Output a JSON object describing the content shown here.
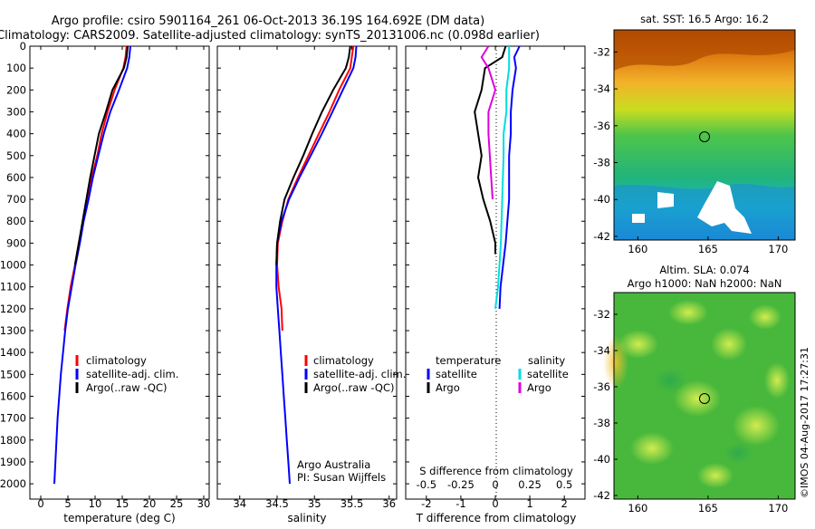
{
  "title_line1": "Argo profile: csiro 5901164_261 06-Oct-2013 36.19S 164.692E (DM data)",
  "title_line2": "Climatology: CARS2009. Satellite-adjusted climatology: synTS_20131006.nc (0.098d earlier)",
  "credit": {
    "line1": "Argo Australia",
    "line2": "PI: Susan Wijffels",
    "stamp": "©IMOS 04-Aug-2017 17:27:31"
  },
  "colors": {
    "climatology": "#ff0000",
    "satellite": "#0000ff",
    "argo": "#000000",
    "salinity_satellite": "#00dddd",
    "salinity_argo": "#dd00dd"
  },
  "chart_data": [
    {
      "type": "line",
      "name": "temperature",
      "xlabel": "temperature (deg C)",
      "xlim": [
        -2,
        31
      ],
      "ylim": [
        2070,
        0
      ],
      "x_ticks": [
        0,
        5,
        10,
        15,
        20,
        25,
        30
      ],
      "y_ticks": [
        0,
        100,
        200,
        300,
        400,
        500,
        600,
        700,
        800,
        900,
        1000,
        1100,
        1200,
        1300,
        1400,
        1500,
        1600,
        1700,
        1800,
        1900,
        2000
      ],
      "legend": [
        "climatology",
        "satellite-adj. clim.",
        "Argo(..raw -QC)"
      ],
      "series": [
        {
          "name": "climatology",
          "depth": [
            0,
            50,
            100,
            200,
            300,
            400,
            500,
            600,
            700,
            800,
            900,
            1000,
            1100,
            1200,
            1300
          ],
          "values": [
            15.8,
            15.6,
            15.2,
            13.6,
            12.3,
            11.2,
            10.4,
            9.4,
            8.6,
            7.8,
            7.0,
            6.3,
            5.5,
            4.9,
            4.4
          ]
        },
        {
          "name": "satellite-adj. clim.",
          "depth": [
            0,
            50,
            100,
            200,
            300,
            400,
            500,
            600,
            700,
            800,
            900,
            1000,
            1100,
            1200,
            1300,
            1400,
            1500,
            1600,
            1700,
            1800,
            1900,
            2000
          ],
          "values": [
            16.5,
            16.3,
            15.9,
            14.4,
            12.8,
            11.6,
            10.6,
            9.6,
            8.8,
            7.9,
            7.2,
            6.4,
            5.7,
            5.0,
            4.5,
            4.1,
            3.7,
            3.4,
            3.1,
            2.9,
            2.7,
            2.5
          ]
        },
        {
          "name": "Argo(..raw -QC)",
          "depth": [
            0,
            50,
            100,
            200,
            300,
            400,
            500,
            600,
            700,
            800,
            900,
            1000
          ],
          "values": [
            16.0,
            15.8,
            15.3,
            13.2,
            12.0,
            10.7,
            9.9,
            9.1,
            8.4,
            7.7,
            7.0,
            6.3
          ]
        }
      ]
    },
    {
      "type": "line",
      "name": "salinity",
      "xlabel": "salinity",
      "xlim": [
        33.7,
        36.1
      ],
      "ylim": [
        2070,
        0
      ],
      "x_ticks": [
        34,
        34.5,
        35,
        35.5,
        36
      ],
      "legend": [
        "climatology",
        "satellite-adj. clim.",
        "Argo(..raw -QC)"
      ],
      "series": [
        {
          "name": "climatology",
          "depth": [
            0,
            50,
            100,
            200,
            300,
            400,
            500,
            600,
            700,
            800,
            900,
            1000,
            1100,
            1200,
            1300
          ],
          "values": [
            35.52,
            35.5,
            35.48,
            35.33,
            35.2,
            35.06,
            34.92,
            34.78,
            34.65,
            34.57,
            34.51,
            34.5,
            34.52,
            34.56,
            34.57
          ]
        },
        {
          "name": "satellite-adj. clim.",
          "depth": [
            0,
            50,
            100,
            200,
            300,
            400,
            500,
            600,
            700,
            800,
            900,
            1000,
            1100,
            1200,
            1300,
            1400,
            1500,
            1600,
            1700,
            1800,
            1900,
            2000
          ],
          "values": [
            35.56,
            35.55,
            35.52,
            35.38,
            35.24,
            35.1,
            34.95,
            34.8,
            34.66,
            34.56,
            34.5,
            34.49,
            34.49,
            34.51,
            34.53,
            34.55,
            34.57,
            34.59,
            34.61,
            34.63,
            34.65,
            34.67
          ]
        },
        {
          "name": "Argo(..raw -QC)",
          "depth": [
            0,
            50,
            100,
            200,
            300,
            400,
            500,
            600,
            700,
            800,
            900,
            1000
          ],
          "values": [
            35.48,
            35.46,
            35.42,
            35.25,
            35.1,
            34.97,
            34.85,
            34.72,
            34.6,
            34.54,
            34.5,
            34.49
          ]
        }
      ]
    },
    {
      "type": "line",
      "name": "difference",
      "xlabel_top": "S difference from climatology",
      "xlabel": "T difference from climatology",
      "xlim": [
        -2.6,
        2.6
      ],
      "ylim": [
        2070,
        0
      ],
      "x_ticks_T": [
        -2,
        -1,
        0,
        1,
        2
      ],
      "x_ticks_S": [
        "-0.5",
        "-0.25",
        "0",
        "0.25",
        "0.5"
      ],
      "legend_left_title": "temperature",
      "legend_right_title": "salinity",
      "legend_left": [
        "satellite",
        "Argo"
      ],
      "legend_right": [
        "satellite",
        "Argo"
      ],
      "series": [
        {
          "name": "temperature satellite",
          "depth": [
            0,
            50,
            100,
            200,
            300,
            400,
            500,
            700,
            900,
            1100,
            1200
          ],
          "values": [
            0.7,
            0.55,
            0.6,
            0.5,
            0.45,
            0.45,
            0.4,
            0.4,
            0.3,
            0.15,
            0.12
          ]
        },
        {
          "name": "temperature Argo",
          "depth": [
            0,
            50,
            100,
            200,
            300,
            400,
            500,
            600,
            700,
            800,
            900,
            950
          ],
          "values": [
            0.3,
            0.2,
            -0.3,
            -0.4,
            -0.6,
            -0.5,
            -0.4,
            -0.5,
            -0.35,
            -0.15,
            0.0,
            0.0
          ]
        },
        {
          "name": "salinity satellite",
          "depth": [
            0,
            50,
            100,
            200,
            300,
            400,
            500,
            700,
            900,
            1100,
            1200
          ],
          "values": [
            0.1,
            0.1,
            0.1,
            0.08,
            0.08,
            0.06,
            0.06,
            0.05,
            0.04,
            0.02,
            0.0
          ]
        },
        {
          "name": "salinity Argo",
          "depth": [
            0,
            50,
            100,
            200,
            300,
            400,
            500,
            600,
            700
          ],
          "values": [
            -0.05,
            -0.1,
            -0.05,
            0.0,
            -0.05,
            -0.05,
            -0.04,
            -0.03,
            -0.02
          ]
        }
      ]
    }
  ],
  "maps": [
    {
      "title": "sat. SST: 16.5 Argo: 16.2",
      "title2": "",
      "lon_ticks": [
        160,
        165,
        170
      ],
      "lat_ticks": [
        -32,
        -34,
        -36,
        -38,
        -40,
        -42
      ]
    },
    {
      "title": "Altim. SLA: 0.074",
      "title2": "Argo h1000: NaN h2000: NaN",
      "lon_ticks": [
        160,
        165,
        170
      ],
      "lat_ticks": [
        -32,
        -34,
        -36,
        -38,
        -40,
        -42
      ]
    }
  ],
  "profile_location": {
    "lon": 164.692,
    "lat": -36.19
  }
}
